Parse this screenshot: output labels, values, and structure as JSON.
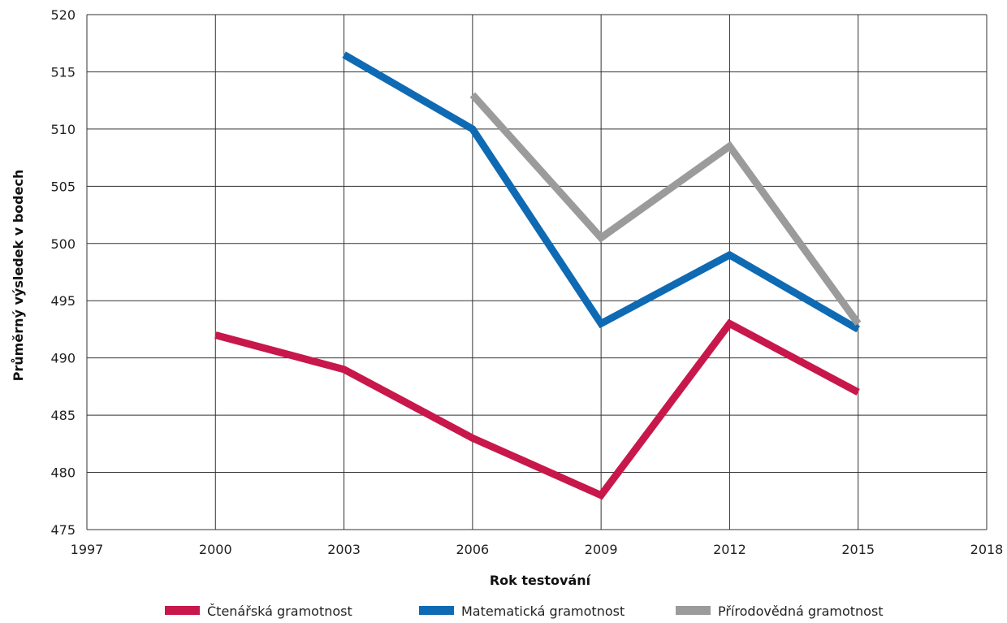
{
  "chart_data": {
    "type": "line",
    "title": "",
    "xlabel": "Rok testování",
    "ylabel": "Průměrný výsledek v bodech",
    "xlim": [
      1997,
      2018
    ],
    "ylim": [
      475,
      520
    ],
    "xticks": [
      1997,
      2000,
      2003,
      2006,
      2009,
      2012,
      2015,
      2018
    ],
    "yticks": [
      475,
      480,
      485,
      490,
      495,
      500,
      505,
      510,
      515,
      520
    ],
    "grid": true,
    "legend_position": "bottom",
    "series": [
      {
        "name": "Čtenářská gramotnost",
        "color": "#c8174b",
        "x": [
          2000,
          2003,
          2006,
          2009,
          2012,
          2015
        ],
        "y": [
          492,
          489,
          483,
          478,
          493,
          487
        ]
      },
      {
        "name": "Matematická gramotnost",
        "color": "#0f6ab4",
        "x": [
          2003,
          2006,
          2009,
          2012,
          2015
        ],
        "y": [
          516.5,
          510,
          493,
          499,
          492.5
        ]
      },
      {
        "name": "Přírodovědná gramotnost",
        "color": "#9b9b9b",
        "x": [
          2006,
          2009,
          2012,
          2015
        ],
        "y": [
          513,
          500.5,
          508.5,
          493
        ]
      }
    ]
  }
}
